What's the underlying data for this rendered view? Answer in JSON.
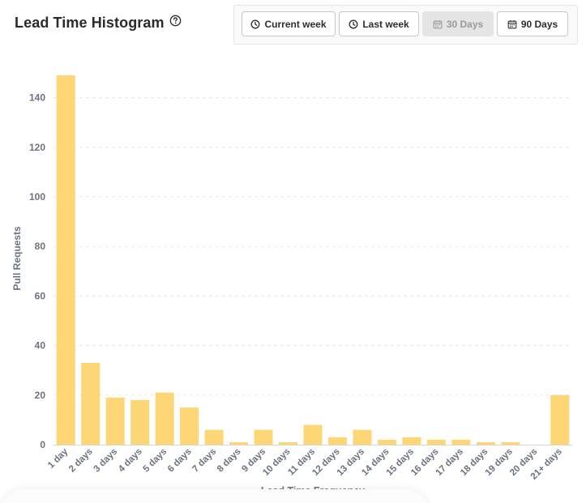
{
  "header": {
    "title": "Lead Time Histogram",
    "help_icon": "question-circle-icon"
  },
  "range_buttons": [
    {
      "label": "Current week",
      "icon": "clock-icon",
      "active": false
    },
    {
      "label": "Last week",
      "icon": "clock-icon",
      "active": false
    },
    {
      "label": "30 Days",
      "icon": "calendar-icon",
      "active": true
    },
    {
      "label": "90 Days",
      "icon": "calendar-icon",
      "active": false
    }
  ],
  "colors": {
    "bar": "#fdd675",
    "axis_text": "#6b7280",
    "grid": "#e8e8e8"
  },
  "chart_data": {
    "type": "bar",
    "title": "",
    "xlabel": "Lead Time Frequency",
    "ylabel": "Pull Requests",
    "ylim": [
      0,
      150
    ],
    "yticks": [
      0,
      20,
      40,
      60,
      80,
      100,
      120,
      140
    ],
    "grid": true,
    "categories": [
      "1 day",
      "2 days",
      "3 days",
      "4 days",
      "5 days",
      "6 days",
      "7 days",
      "8 days",
      "9 days",
      "10 days",
      "11 days",
      "12 days",
      "13 days",
      "14 days",
      "15 days",
      "16 days",
      "17 days",
      "18 days",
      "19 days",
      "20 days",
      "21+ days"
    ],
    "values": [
      149,
      33,
      19,
      18,
      21,
      15,
      6,
      1,
      6,
      1,
      8,
      3,
      6,
      2,
      3,
      2,
      2,
      1,
      1,
      0,
      20
    ]
  }
}
